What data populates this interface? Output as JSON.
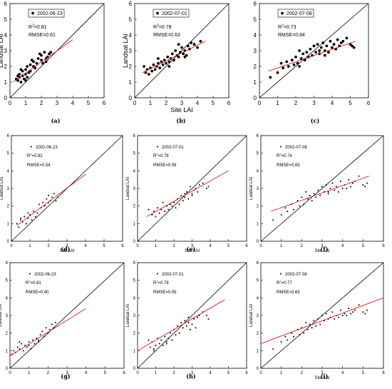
{
  "chart_data": [
    {
      "type": "scatter",
      "panel_label": "(a)",
      "legend": "2002-06-23",
      "r2_prefix": "R",
      "r2_sup": "2",
      "r2_value": "=0.81",
      "rmse": "RMSE=0.61",
      "xlabel": "",
      "ylabel": "Landsat LAI",
      "xlim": [
        0,
        6
      ],
      "ylim": [
        0,
        6
      ],
      "xticks": [
        "0",
        "1",
        "2",
        "3",
        "4",
        "5",
        "6"
      ],
      "yticks": [
        "0",
        "1",
        "2",
        "3",
        "4",
        "5",
        "6"
      ],
      "one_to_one_line": true,
      "fit_line": {
        "x": [
          0.2,
          4.0
        ],
        "y": [
          1.0,
          3.7
        ]
      },
      "points": {
        "x": [
          0.4,
          0.5,
          0.6,
          0.6,
          0.7,
          0.8,
          0.8,
          0.9,
          1.0,
          1.0,
          1.1,
          1.2,
          1.3,
          1.4,
          1.5,
          1.5,
          1.6,
          1.7,
          1.8,
          1.9,
          2.0,
          2.0,
          2.1,
          2.2,
          2.3,
          2.4,
          2.5,
          2.6,
          0.7,
          1.0,
          1.3,
          0.5,
          1.1,
          2.3
        ],
        "y": [
          1.2,
          1.1,
          1.3,
          1.5,
          1.0,
          1.4,
          1.7,
          1.2,
          1.5,
          1.8,
          1.3,
          1.6,
          2.1,
          2.4,
          2.0,
          2.3,
          1.9,
          2.2,
          2.5,
          2.8,
          2.4,
          2.7,
          2.2,
          2.9,
          2.5,
          2.6,
          2.8,
          2.9,
          1.8,
          1.1,
          1.7,
          1.4,
          2.0,
          2.3
        ]
      }
    },
    {
      "type": "scatter",
      "panel_label": "(b)",
      "legend": "2002-07-01",
      "r2_prefix": "R",
      "r2_sup": "2",
      "r2_value": "=0.78",
      "rmse": "RMSE=0.63",
      "xlabel": "Site LAI",
      "ylabel": "Landsat LAI",
      "xlim": [
        0,
        6
      ],
      "ylim": [
        0,
        6
      ],
      "xticks": [
        "0",
        "1",
        "2",
        "3",
        "4",
        "5",
        "6"
      ],
      "yticks": [
        "0",
        "1",
        "2",
        "3",
        "4",
        "5",
        "6"
      ],
      "one_to_one_line": true,
      "fit_line": {
        "x": [
          0.5,
          4.5
        ],
        "y": [
          1.6,
          3.6
        ]
      },
      "points": {
        "x": [
          0.6,
          0.7,
          0.8,
          0.9,
          1.0,
          1.1,
          1.2,
          1.3,
          1.4,
          1.5,
          1.6,
          1.7,
          1.8,
          1.9,
          2.0,
          2.1,
          2.2,
          2.3,
          2.4,
          2.5,
          2.6,
          2.7,
          2.8,
          2.9,
          3.0,
          3.1,
          3.2,
          3.3,
          3.4,
          3.5,
          3.6,
          3.8,
          4.0,
          4.2,
          1.5,
          2.2,
          2.8,
          3.2
        ],
        "y": [
          2.0,
          1.6,
          1.8,
          1.5,
          1.9,
          1.7,
          2.1,
          1.8,
          2.0,
          2.2,
          1.9,
          2.3,
          2.1,
          2.4,
          2.2,
          2.6,
          2.3,
          2.5,
          2.8,
          2.4,
          3.0,
          2.7,
          2.6,
          2.9,
          3.2,
          2.8,
          3.0,
          2.7,
          3.3,
          3.1,
          3.5,
          3.4,
          3.2,
          3.6,
          2.5,
          2.0,
          3.4,
          2.6
        ]
      }
    },
    {
      "type": "scatter",
      "panel_label": "(c)",
      "legend": "2002-07-08",
      "r2_prefix": "R",
      "r2_sup": "2",
      "r2_value": "=0.73",
      "rmse": "RMSE=0.84",
      "xlabel": "",
      "ylabel": "",
      "xlim": [
        0,
        6
      ],
      "ylim": [
        0,
        6
      ],
      "xticks": [
        "0",
        "1",
        "2",
        "3",
        "4",
        "5",
        "6"
      ],
      "yticks": [
        "0",
        "1",
        "2",
        "3",
        "4",
        "5",
        "6"
      ],
      "one_to_one_line": true,
      "fit_line": {
        "x": [
          0.5,
          5.3
        ],
        "y": [
          1.7,
          3.6
        ]
      },
      "points": {
        "x": [
          0.6,
          1.0,
          1.2,
          1.3,
          1.5,
          1.6,
          1.8,
          1.9,
          2.0,
          2.1,
          2.2,
          2.3,
          2.4,
          2.5,
          2.6,
          2.7,
          2.8,
          2.9,
          3.0,
          3.1,
          3.2,
          3.3,
          3.4,
          3.5,
          3.6,
          3.7,
          3.8,
          3.9,
          4.0,
          4.1,
          4.2,
          4.3,
          4.4,
          4.5,
          4.6,
          4.8,
          5.0,
          5.1,
          5.2,
          3.3,
          3.6,
          2.2
        ],
        "y": [
          1.3,
          1.6,
          2.2,
          1.9,
          2.3,
          2.0,
          2.4,
          2.1,
          2.6,
          2.2,
          3.0,
          2.5,
          2.8,
          2.4,
          2.9,
          2.6,
          3.1,
          2.7,
          3.3,
          2.9,
          3.4,
          2.8,
          3.2,
          3.5,
          3.0,
          3.3,
          2.9,
          3.6,
          3.2,
          3.4,
          3.1,
          3.7,
          3.3,
          3.5,
          3.6,
          3.8,
          3.4,
          3.3,
          3.2,
          3.0,
          2.7,
          2.0
        ]
      }
    },
    {
      "type": "scatter",
      "panel_label": "(d)",
      "legend": "2002-06-23",
      "r2_prefix": "R",
      "r2_sup": "2",
      "r2_value": "=0.82",
      "rmse": "RMSE=0.54",
      "xlabel": "Site LAI",
      "ylabel": "Landsat LAI",
      "xlim": [
        0,
        6
      ],
      "ylim": [
        0,
        6
      ],
      "xticks": [
        "0",
        "1",
        "2",
        "3",
        "4",
        "5",
        "6"
      ],
      "yticks": [
        "0",
        "1",
        "2",
        "3",
        "4",
        "5",
        "6"
      ],
      "one_to_one_line": true,
      "fit_line": {
        "x": [
          0.3,
          4.0
        ],
        "y": [
          0.9,
          3.8
        ]
      },
      "points": {
        "x": [
          0.3,
          0.4,
          0.5,
          0.6,
          0.7,
          0.8,
          0.9,
          1.0,
          1.1,
          1.2,
          1.4,
          1.5,
          1.6,
          1.7,
          1.8,
          1.9,
          2.0,
          2.1,
          2.2,
          2.3,
          2.4,
          2.5,
          0.5,
          0.9,
          1.3,
          2.0
        ],
        "y": [
          1.0,
          0.8,
          1.2,
          1.1,
          1.4,
          1.0,
          1.3,
          1.5,
          1.2,
          1.7,
          1.6,
          2.1,
          1.9,
          2.2,
          2.0,
          2.4,
          2.6,
          2.3,
          2.5,
          2.7,
          2.3,
          2.5,
          1.3,
          1.6,
          1.4,
          2.2
        ]
      }
    },
    {
      "type": "scatter",
      "panel_label": "(e)",
      "legend": "2002-07-01",
      "r2_prefix": "R",
      "r2_sup": "2",
      "r2_value": "=0.78",
      "rmse": "RMSE=0.58",
      "xlabel": "Site LAI",
      "ylabel": "Landsat LAI",
      "xlim": [
        0,
        6
      ],
      "ylim": [
        0,
        6
      ],
      "xticks": [
        "0",
        "1",
        "2",
        "3",
        "4",
        "5",
        "6"
      ],
      "yticks": [
        "0",
        "1",
        "2",
        "3",
        "4",
        "5",
        "6"
      ],
      "one_to_one_line": true,
      "fit_line": {
        "x": [
          0.5,
          5.0
        ],
        "y": [
          1.4,
          4.0
        ]
      },
      "points": {
        "x": [
          0.6,
          0.8,
          0.9,
          1.0,
          1.1,
          1.2,
          1.3,
          1.5,
          1.6,
          1.7,
          1.8,
          1.9,
          2.0,
          2.1,
          2.2,
          2.3,
          2.4,
          2.5,
          2.6,
          2.7,
          2.8,
          2.9,
          3.0,
          3.1,
          3.2,
          3.3,
          3.4,
          3.6,
          3.8,
          3.9,
          1.4,
          2.6,
          3.0
        ],
        "y": [
          1.8,
          1.5,
          1.7,
          1.4,
          1.9,
          1.6,
          1.8,
          1.7,
          2.0,
          1.8,
          2.1,
          2.0,
          2.2,
          1.9,
          2.4,
          2.1,
          2.6,
          2.3,
          2.5,
          2.8,
          2.4,
          3.1,
          2.7,
          2.9,
          3.0,
          2.8,
          3.2,
          3.3,
          3.0,
          3.1,
          2.2,
          2.7,
          2.6
        ]
      }
    },
    {
      "type": "scatter",
      "panel_label": "(f)",
      "legend": "2002-07-08",
      "r2_prefix": "R",
      "r2_sup": "2",
      "r2_value": "=0.74",
      "rmse": "RMSE=0.83",
      "xlabel": "Site LAI",
      "ylabel": "Landsat LAI",
      "xlim": [
        0,
        6
      ],
      "ylim": [
        0,
        6
      ],
      "xticks": [
        "0",
        "1",
        "2",
        "3",
        "4",
        "5",
        "6"
      ],
      "yticks": [
        "0",
        "1",
        "2",
        "3",
        "4",
        "5",
        "6"
      ],
      "one_to_one_line": true,
      "fit_line": {
        "x": [
          0.5,
          5.3
        ],
        "y": [
          1.7,
          3.7
        ]
      },
      "points": {
        "x": [
          0.6,
          1.0,
          1.2,
          1.3,
          1.5,
          1.6,
          1.8,
          1.9,
          2.0,
          2.1,
          2.2,
          2.3,
          2.4,
          2.5,
          2.6,
          2.7,
          2.8,
          2.9,
          3.0,
          3.1,
          3.2,
          3.3,
          3.4,
          3.5,
          3.6,
          3.7,
          3.8,
          3.9,
          4.0,
          4.1,
          4.2,
          4.3,
          4.4,
          4.5,
          4.6,
          4.8,
          5.0,
          5.1,
          5.2,
          3.3
        ],
        "y": [
          1.2,
          1.5,
          1.9,
          1.7,
          2.1,
          1.8,
          2.3,
          2.0,
          2.5,
          2.1,
          2.8,
          2.4,
          2.6,
          2.3,
          2.7,
          2.5,
          2.9,
          2.6,
          3.1,
          2.8,
          3.2,
          2.7,
          3.0,
          3.3,
          2.9,
          3.1,
          2.8,
          3.4,
          3.0,
          3.2,
          3.0,
          3.5,
          3.1,
          3.3,
          3.4,
          3.7,
          3.2,
          3.1,
          3.3,
          2.8
        ]
      }
    },
    {
      "type": "scatter",
      "panel_label": "(g)",
      "legend": "2002-06-23",
      "r2_prefix": "R",
      "r2_sup": "2",
      "r2_value": "=0.81",
      "rmse": "RMSE=0.40",
      "xlabel": "",
      "ylabel": "Landsat LAI",
      "xlim": [
        0,
        6
      ],
      "ylim": [
        0,
        6
      ],
      "xticks": [
        "0",
        "1",
        "2",
        "3",
        "4",
        "5",
        "6"
      ],
      "yticks": [
        "0",
        "1",
        "2",
        "3",
        "4",
        "5",
        "6"
      ],
      "one_to_one_line": true,
      "fit_line": {
        "x": [
          0.0,
          4.0
        ],
        "y": [
          0.7,
          3.4
        ]
      },
      "points": {
        "x": [
          0.1,
          0.2,
          0.3,
          0.4,
          0.5,
          0.6,
          0.7,
          0.8,
          0.9,
          1.0,
          1.1,
          1.2,
          1.3,
          1.4,
          1.5,
          1.6,
          1.7,
          1.8,
          1.9,
          2.0,
          2.1,
          2.2,
          2.3,
          2.4,
          0.5,
          1.0,
          1.5
        ],
        "y": [
          0.8,
          1.0,
          0.9,
          1.2,
          1.1,
          1.4,
          1.0,
          1.3,
          1.2,
          1.5,
          1.1,
          1.6,
          1.4,
          1.7,
          1.5,
          1.9,
          2.1,
          1.8,
          2.3,
          2.0,
          2.2,
          2.5,
          2.3,
          2.6,
          1.5,
          1.3,
          1.6
        ]
      }
    },
    {
      "type": "scatter",
      "panel_label": "(h)",
      "legend": "2002-07-01",
      "r2_prefix": "R",
      "r2_sup": "2",
      "r2_value": "=0.78",
      "rmse": "RMSE=0.55",
      "xlabel": "",
      "ylabel": "Landsat LAI",
      "xlim": [
        0,
        6
      ],
      "ylim": [
        0,
        6
      ],
      "xticks": [
        "0",
        "1",
        "2",
        "3",
        "4",
        "5",
        "6"
      ],
      "yticks": [
        "0",
        "1",
        "2",
        "3",
        "4",
        "5",
        "6"
      ],
      "one_to_one_line": true,
      "fit_line": {
        "x": [
          0.0,
          4.8
        ],
        "y": [
          1.0,
          3.9
        ]
      },
      "points": {
        "x": [
          0.6,
          0.7,
          0.8,
          0.9,
          1.0,
          1.1,
          1.2,
          1.3,
          1.4,
          1.5,
          1.6,
          1.7,
          1.8,
          1.9,
          2.0,
          2.1,
          2.2,
          2.3,
          2.4,
          2.5,
          2.6,
          2.7,
          2.8,
          2.9,
          3.0,
          3.1,
          3.2,
          3.3,
          3.4,
          3.6,
          3.8,
          3.9,
          0.9,
          1.6,
          2.8
        ],
        "y": [
          1.6,
          1.2,
          1.5,
          1.1,
          1.3,
          1.7,
          1.4,
          1.6,
          1.3,
          1.8,
          1.5,
          1.7,
          2.0,
          1.6,
          2.2,
          1.9,
          2.4,
          2.0,
          2.6,
          2.3,
          2.7,
          2.4,
          2.6,
          2.2,
          2.5,
          2.8,
          2.3,
          2.9,
          3.0,
          3.2,
          3.0,
          2.8,
          1.0,
          1.4,
          2.9
        ]
      }
    },
    {
      "type": "scatter",
      "panel_label": "(i)",
      "legend": "2002-07-08",
      "r2_prefix": "R",
      "r2_sup": "2",
      "r2_value": "=0.77",
      "rmse": "RMSE=0.83",
      "xlabel": "Site LAI",
      "ylabel": "Landsat LAI",
      "xlim": [
        0,
        6
      ],
      "ylim": [
        0,
        6
      ],
      "xticks": [
        "0",
        "1",
        "2",
        "3",
        "4",
        "5",
        "6"
      ],
      "yticks": [
        "0",
        "1",
        "2",
        "3",
        "4",
        "5",
        "6"
      ],
      "one_to_one_line": true,
      "fit_line": {
        "x": [
          0.0,
          6.0
        ],
        "y": [
          1.4,
          4.0
        ]
      },
      "points": {
        "x": [
          0.6,
          1.0,
          1.2,
          1.3,
          1.5,
          1.6,
          1.8,
          1.9,
          2.0,
          2.1,
          2.2,
          2.3,
          2.4,
          2.5,
          2.6,
          2.7,
          2.8,
          2.9,
          3.0,
          3.1,
          3.2,
          3.3,
          3.4,
          3.5,
          3.6,
          3.7,
          3.8,
          3.9,
          4.0,
          4.1,
          4.2,
          4.3,
          4.4,
          4.5,
          4.6,
          4.8,
          5.0,
          5.1,
          5.2
        ],
        "y": [
          1.1,
          1.5,
          1.8,
          1.6,
          2.0,
          1.8,
          2.2,
          1.9,
          2.3,
          2.0,
          2.6,
          2.2,
          2.5,
          2.3,
          2.7,
          2.4,
          2.8,
          2.5,
          3.0,
          2.7,
          3.1,
          2.8,
          2.9,
          3.2,
          2.8,
          3.0,
          2.9,
          3.3,
          3.0,
          3.1,
          3.0,
          3.4,
          3.1,
          3.2,
          3.3,
          3.6,
          3.2,
          3.1,
          3.3
        ]
      }
    }
  ]
}
